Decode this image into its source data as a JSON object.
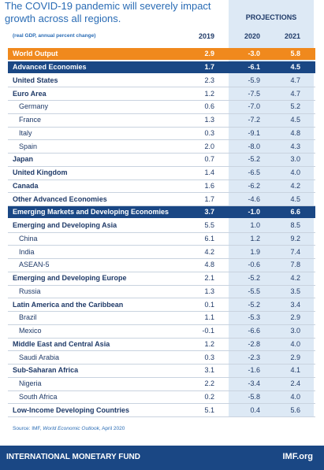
{
  "title": "The COVID-19 pandemic will severely impact growth across all regions.",
  "projections": "PROJECTIONS",
  "table": {
    "note": "(real GDP, annual percent change)",
    "years": [
      "2019",
      "2020",
      "2021"
    ],
    "rows": [
      {
        "name": "World Output",
        "values": [
          "2.9",
          "-3.0",
          "5.8"
        ]
      },
      {
        "name": "Advanced Economies",
        "values": [
          "1.7",
          "-6.1",
          "4.5"
        ]
      },
      {
        "name": "United States",
        "values": [
          "2.3",
          "-5.9",
          "4.7"
        ]
      },
      {
        "name": "Euro Area",
        "values": [
          "1.2",
          "-7.5",
          "4.7"
        ]
      },
      {
        "name": "Germany",
        "values": [
          "0.6",
          "-7.0",
          "5.2"
        ]
      },
      {
        "name": "France",
        "values": [
          "1.3",
          "-7.2",
          "4.5"
        ]
      },
      {
        "name": "Italy",
        "values": [
          "0.3",
          "-9.1",
          "4.8"
        ]
      },
      {
        "name": "Spain",
        "values": [
          "2.0",
          "-8.0",
          "4.3"
        ]
      },
      {
        "name": "Japan",
        "values": [
          "0.7",
          "-5.2",
          "3.0"
        ]
      },
      {
        "name": "United Kingdom",
        "values": [
          "1.4",
          "-6.5",
          "4.0"
        ]
      },
      {
        "name": "Canada",
        "values": [
          "1.6",
          "-6.2",
          "4.2"
        ]
      },
      {
        "name": "Other Advanced Economies",
        "values": [
          "1.7",
          "-4.6",
          "4.5"
        ]
      },
      {
        "name": "Emerging Markets and Developing Economies",
        "values": [
          "3.7",
          "-1.0",
          "6.6"
        ]
      },
      {
        "name": "Emerging and Developing Asia",
        "values": [
          "5.5",
          "1.0",
          "8.5"
        ]
      },
      {
        "name": "China",
        "values": [
          "6.1",
          "1.2",
          "9.2"
        ]
      },
      {
        "name": "India",
        "values": [
          "4.2",
          "1.9",
          "7.4"
        ]
      },
      {
        "name": "ASEAN-5",
        "values": [
          "4.8",
          "-0.6",
          "7.8"
        ]
      },
      {
        "name": "Emerging and Developing Europe",
        "values": [
          "2.1",
          "-5.2",
          "4.2"
        ]
      },
      {
        "name": "Russia",
        "values": [
          "1.3",
          "-5.5",
          "3.5"
        ]
      },
      {
        "name": "Latin America and the Caribbean",
        "values": [
          "0.1",
          "-5.2",
          "3.4"
        ]
      },
      {
        "name": "Brazil",
        "values": [
          "1.1",
          "-5.3",
          "2.9"
        ]
      },
      {
        "name": "Mexico",
        "values": [
          "-0.1",
          "-6.6",
          "3.0"
        ]
      },
      {
        "name": "Middle East and Central Asia",
        "values": [
          "1.2",
          "-2.8",
          "4.0"
        ]
      },
      {
        "name": "Saudi Arabia",
        "values": [
          "0.3",
          "-2.3",
          "2.9"
        ]
      },
      {
        "name": "Sub-Saharan Africa",
        "values": [
          "3.1",
          "-1.6",
          "4.1"
        ]
      },
      {
        "name": "Nigeria",
        "values": [
          "2.2",
          "-3.4",
          "2.4"
        ]
      },
      {
        "name": "South Africa",
        "values": [
          "0.2",
          "-5.8",
          "4.0"
        ]
      },
      {
        "name": "Low-Income Developing Countries",
        "values": [
          "5.1",
          "0.4",
          "5.6"
        ]
      }
    ]
  },
  "source": [
    "Source: IMF, ",
    "World Economic Outlook",
    ", April 2020"
  ],
  "footer": {
    "org": "INTERNATIONAL MONETARY FUND",
    "site": "IMF.org"
  }
}
